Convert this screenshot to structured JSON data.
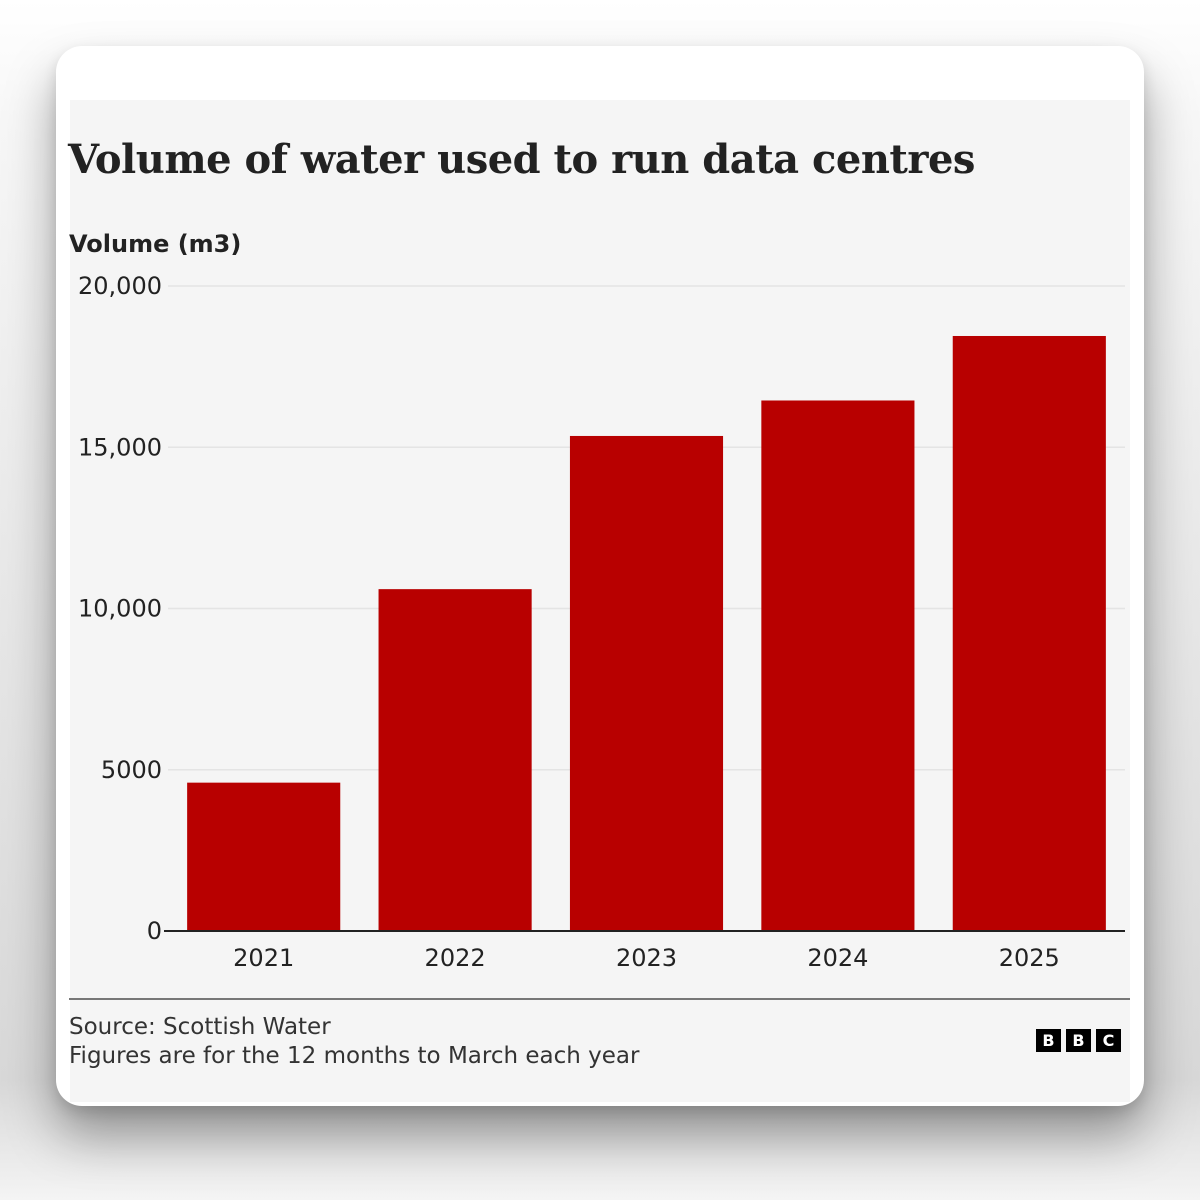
{
  "chart_data": {
    "type": "bar",
    "title": "Volume of water used to run data centres",
    "ylabel": "Volume (m3)",
    "xlabel": "",
    "categories": [
      "2021",
      "2022",
      "2023",
      "2024",
      "2025"
    ],
    "values": [
      4600,
      10600,
      15350,
      16450,
      18450
    ],
    "ylim": [
      0,
      20000
    ],
    "yticks": [
      0,
      5000,
      10000,
      15000,
      20000
    ],
    "ytick_labels": [
      "0",
      "5000",
      "10,000",
      "15,000",
      "20,000"
    ],
    "grid": true,
    "legend": false,
    "bar_color": "#b80000"
  },
  "footer": {
    "source": "Source: Scottish Water",
    "note": "Figures are for the 12 months to March each year",
    "logo_letters": [
      "B",
      "B",
      "C"
    ]
  },
  "colors": {
    "bar": "#b80000",
    "panel_background": "#f5f5f5",
    "text": "#222222"
  }
}
